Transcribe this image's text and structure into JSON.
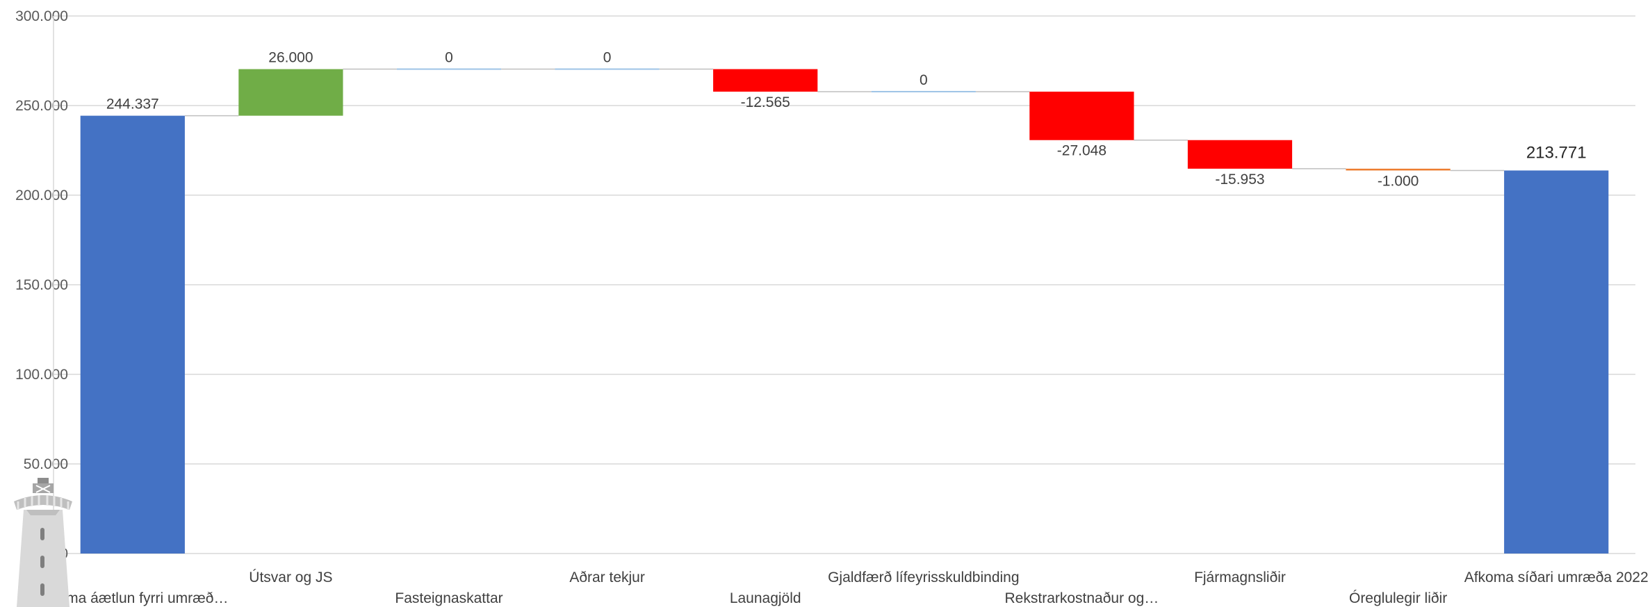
{
  "chart_data": {
    "type": "waterfall",
    "categories": [
      "Afkoma áætlun fyrri umræð…",
      "Útsvar og JS",
      "Fasteignaskattar",
      "Aðrar tekjur",
      "Launagjöld",
      "Gjaldfærð lífeyrisskuldbinding",
      "Rekstrarkostnaður og…",
      "Fjármagnsliðir",
      "Óreglulegir liðir",
      "Afkoma síðari umræða 2022"
    ],
    "values": [
      244337,
      26000,
      0,
      0,
      -12565,
      0,
      -27048,
      -15953,
      -1000,
      213771
    ],
    "is_total": [
      true,
      false,
      false,
      false,
      false,
      false,
      false,
      false,
      false,
      true
    ],
    "data_labels": [
      "244.337",
      "26.000",
      "0",
      "0",
      "-12.565",
      "0",
      "-27.048",
      "-15.953",
      "-1.000",
      "213.771"
    ],
    "yticks": [
      "0",
      "50.000",
      "100.000",
      "150.000",
      "200.000",
      "250.000",
      "300.000"
    ],
    "ylim": [
      0,
      300000
    ],
    "grid": true,
    "colors": {
      "total": "#4472C4",
      "increase": "#70AD47",
      "decrease": "#FF0000",
      "small_decrease": "#ED7D31",
      "zero": "#9DC3E6",
      "grid": "#D9D9D9",
      "connector": "#BFBFBF"
    }
  },
  "logo": {
    "icon": "lighthouse-icon"
  }
}
